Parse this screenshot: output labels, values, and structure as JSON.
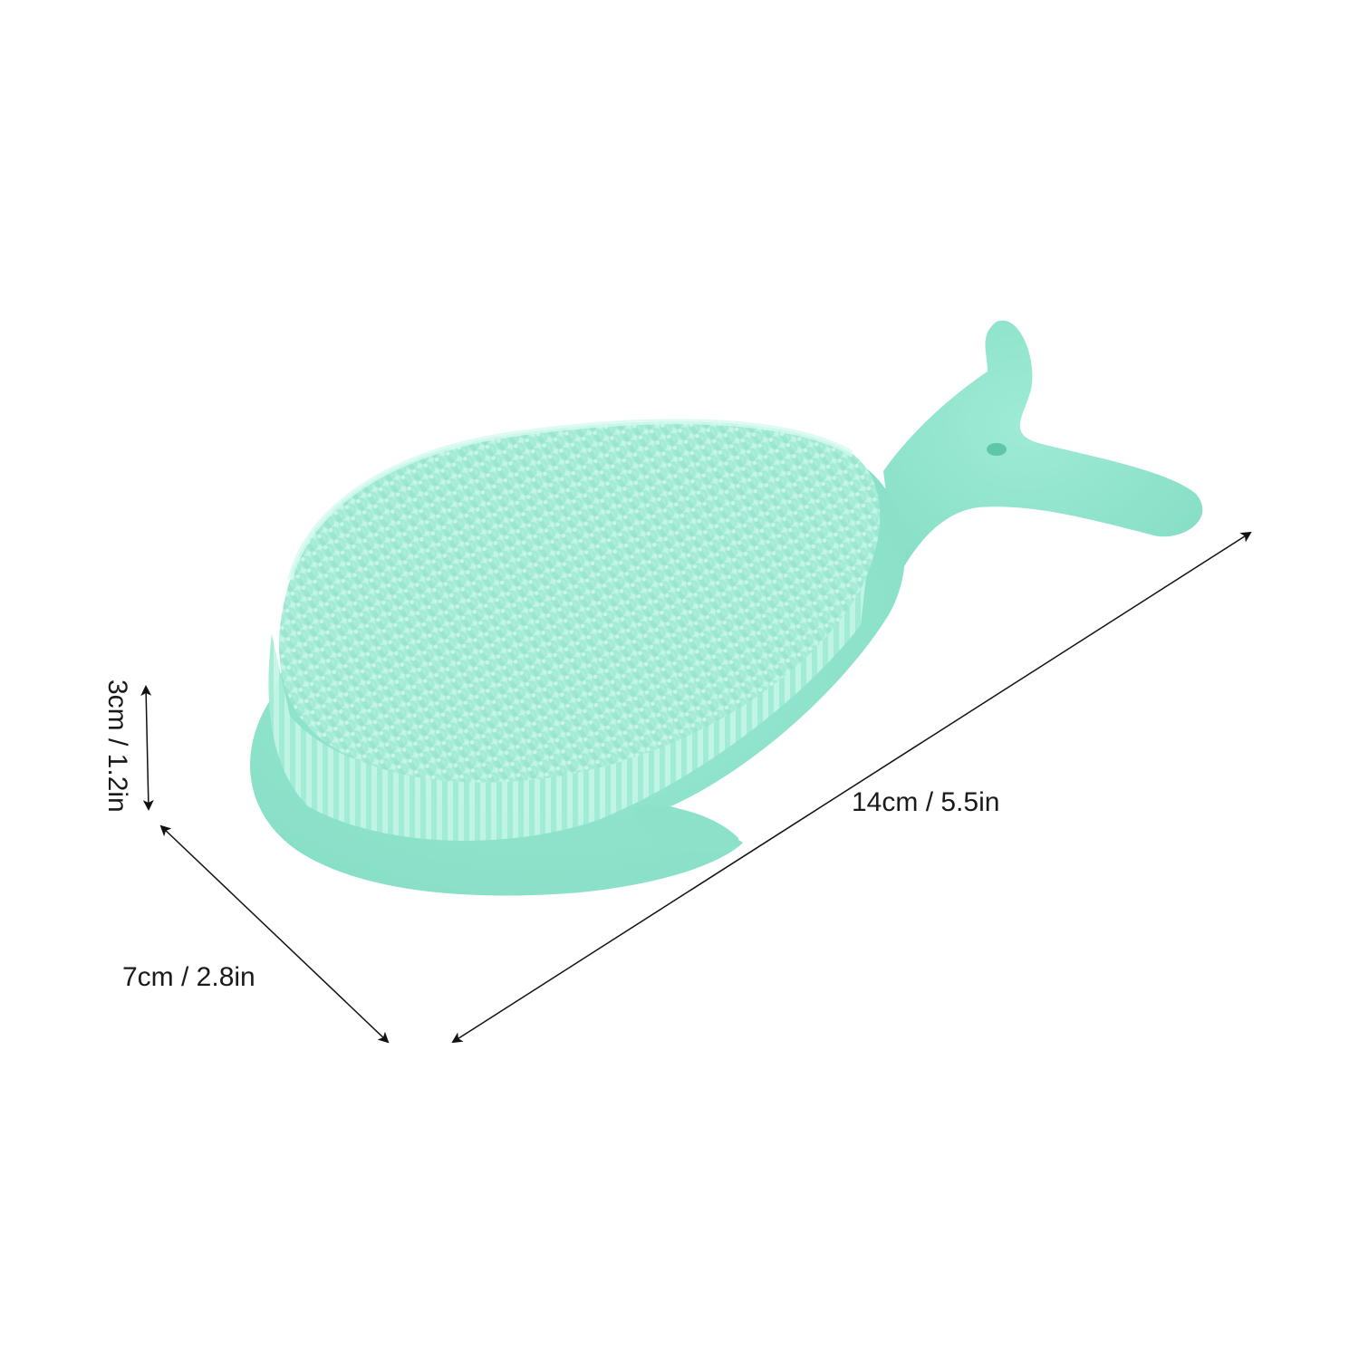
{
  "product": {
    "name": "whale-shaped silicone bath brush",
    "body_color": "#92E6CF",
    "shadow_color": "#7FD8BF",
    "bristle_color": "#A6EDD9",
    "bristle_highlight": "#C8F7EA"
  },
  "dimensions": {
    "length_label": "14cm / 5.5in",
    "width_label": "7cm / 2.8in",
    "height_label": "3cm / 1.2in"
  },
  "arrow_color": "#111111"
}
